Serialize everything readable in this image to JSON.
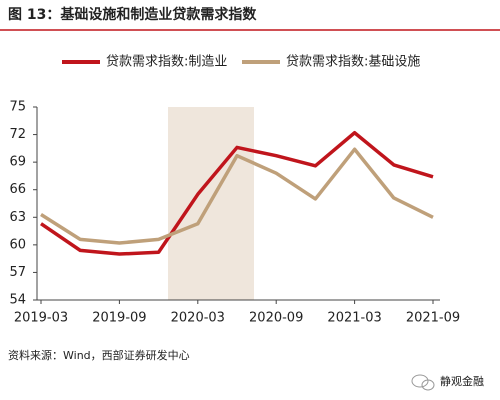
{
  "chart_data": {
    "type": "line",
    "title": "图 13：基础设施和制造业贷款需求指数",
    "categories": [
      "2019-03",
      null,
      "2019-09",
      null,
      "2020-03",
      null,
      "2020-09",
      null,
      "2021-03",
      null,
      "2021-09"
    ],
    "series": [
      {
        "name": "贷款需求指数:制造业",
        "color": "#c0151c",
        "values": [
          62.3,
          59.4,
          59.0,
          59.2,
          65.5,
          70.6,
          69.7,
          68.6,
          72.2,
          68.7,
          67.4
        ]
      },
      {
        "name": "贷款需求指数:基础设施",
        "color": "#bfa07a",
        "values": [
          63.3,
          60.6,
          60.2,
          60.6,
          62.3,
          69.7,
          67.8,
          65.0,
          70.4,
          65.1,
          63.0
        ]
      }
    ],
    "ylim": [
      54,
      75
    ],
    "yticks": [
      54,
      57,
      60,
      63,
      66,
      69,
      72,
      75
    ],
    "source": "资料来源：Wind，西部证券研发中心",
    "watermark": "静观金融"
  }
}
